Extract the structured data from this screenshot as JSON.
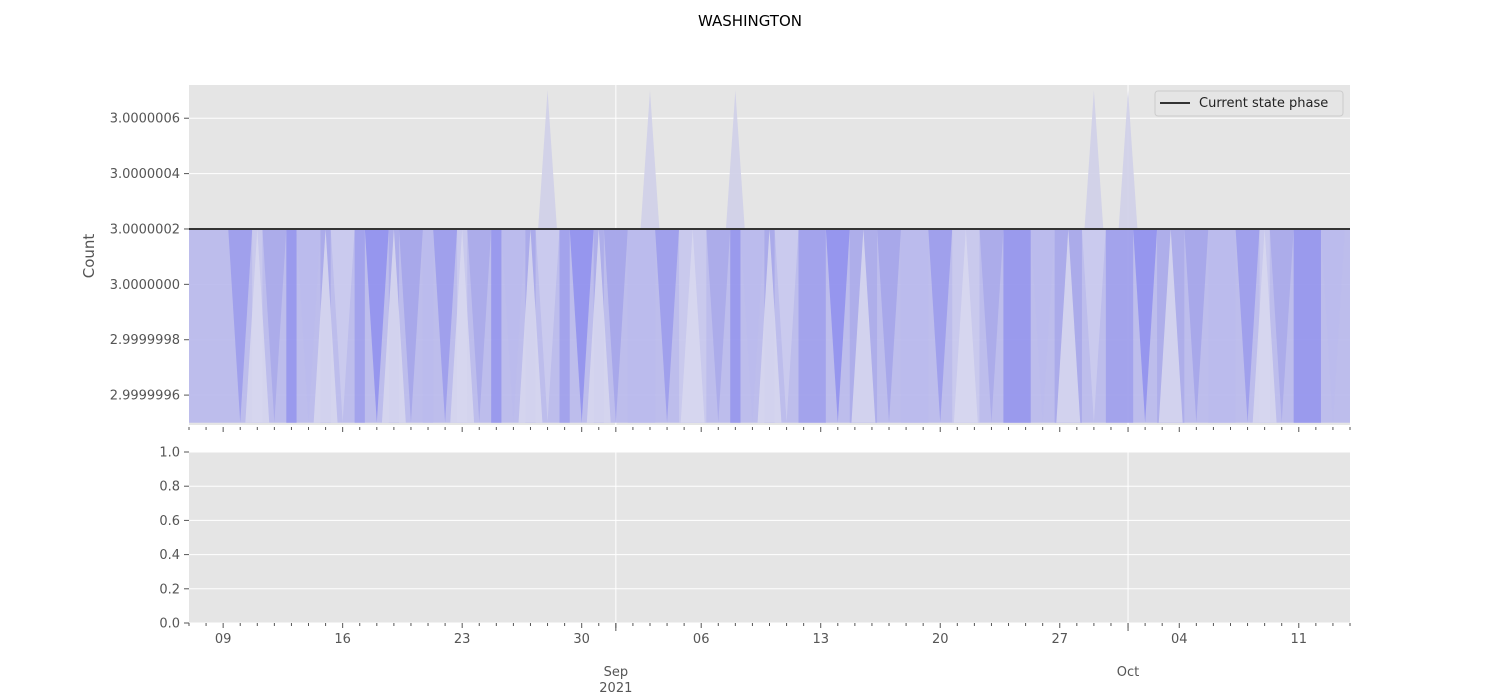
{
  "chart_data": {
    "title": "WASHINGTON",
    "ylabel": "Count",
    "legend_location": "top-right",
    "grid": true,
    "top_panel": {
      "type": "area",
      "y_range": [
        2.999999492,
        3.00000072
      ],
      "reference_line": {
        "name": "Current state phase",
        "value": 3.0000002,
        "color": "#333333"
      },
      "baseline": 2.9999995,
      "band_levels": {
        "low": 3.0000002,
        "high": 3.0000007
      },
      "y_ticks": [
        "2.9999996",
        "2.9999998",
        "3.0000000",
        "3.0000002",
        "3.0000004",
        "3.0000006"
      ],
      "dip_dates": [
        "2021-08-10",
        "2021-08-12",
        "2021-08-14",
        "2021-08-16",
        "2021-08-18",
        "2021-08-20",
        "2021-08-22",
        "2021-08-24",
        "2021-08-26",
        "2021-08-28",
        "2021-08-30",
        "2021-09-01",
        "2021-09-04",
        "2021-09-07",
        "2021-09-09",
        "2021-09-11",
        "2021-09-14",
        "2021-09-17",
        "2021-09-20",
        "2021-09-23",
        "2021-09-26",
        "2021-09-29",
        "2021-10-02",
        "2021-10-05",
        "2021-10-08",
        "2021-10-10",
        "2021-10-13"
      ],
      "peak_dates": [
        "2021-08-28",
        "2021-09-03",
        "2021-09-08",
        "2021-09-29",
        "2021-10-01"
      ],
      "band_colors": [
        "#9b9bec",
        "#a9a9ea",
        "#bbbbed",
        "#cdcdee",
        "#8f8fee",
        "#a5a5ea"
      ]
    },
    "bottom_panel": {
      "type": "area",
      "ylim": [
        0.0,
        1.0
      ],
      "y_ticks": [
        "0.0",
        "0.2",
        "0.4",
        "0.6",
        "0.8",
        "1.0"
      ]
    },
    "x_axis": {
      "range": [
        "2021-08-07",
        "2021-10-14"
      ],
      "day_ticks": [
        {
          "date": "2021-08-09",
          "label": "09"
        },
        {
          "date": "2021-08-16",
          "label": "16"
        },
        {
          "date": "2021-08-23",
          "label": "23"
        },
        {
          "date": "2021-08-30",
          "label": "30"
        },
        {
          "date": "2021-09-06",
          "label": "06"
        },
        {
          "date": "2021-09-13",
          "label": "13"
        },
        {
          "date": "2021-09-20",
          "label": "20"
        },
        {
          "date": "2021-09-27",
          "label": "27"
        },
        {
          "date": "2021-10-04",
          "label": "04"
        },
        {
          "date": "2021-10-11",
          "label": "11"
        }
      ],
      "month_ticks": [
        {
          "date": "2021-09-01",
          "label": "Sep",
          "year": "2021"
        },
        {
          "date": "2021-10-01",
          "label": "Oct",
          "year": ""
        }
      ]
    }
  }
}
